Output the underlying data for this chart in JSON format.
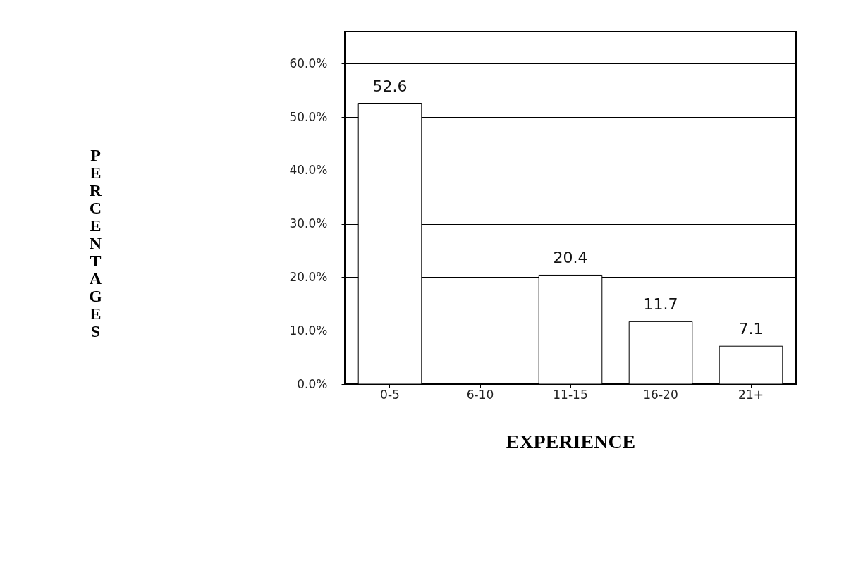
{
  "chart_data": {
    "type": "bar",
    "xlabel": "EXPERIENCE",
    "ylabel": "PERCENTAGES",
    "categories": [
      "0-5",
      "6-10",
      "11-15",
      "16-20",
      "21+"
    ],
    "values": [
      52.6,
      null,
      20.4,
      11.7,
      7.1
    ],
    "value_labels": [
      "52.6",
      null,
      "20.4",
      "11.7",
      "7.1"
    ],
    "color": "#ffffff",
    "ylim": [
      0,
      66
    ],
    "yticks": [
      {
        "value": 0,
        "label": "0.0%"
      },
      {
        "value": 10,
        "label": "10.0%"
      },
      {
        "value": 20,
        "label": "20.0%"
      },
      {
        "value": 30,
        "label": "30.0%"
      },
      {
        "value": 40,
        "label": "40.0%"
      },
      {
        "value": 50,
        "label": "50.0%"
      },
      {
        "value": 60,
        "label": "60.0%"
      }
    ],
    "grid": "y"
  }
}
